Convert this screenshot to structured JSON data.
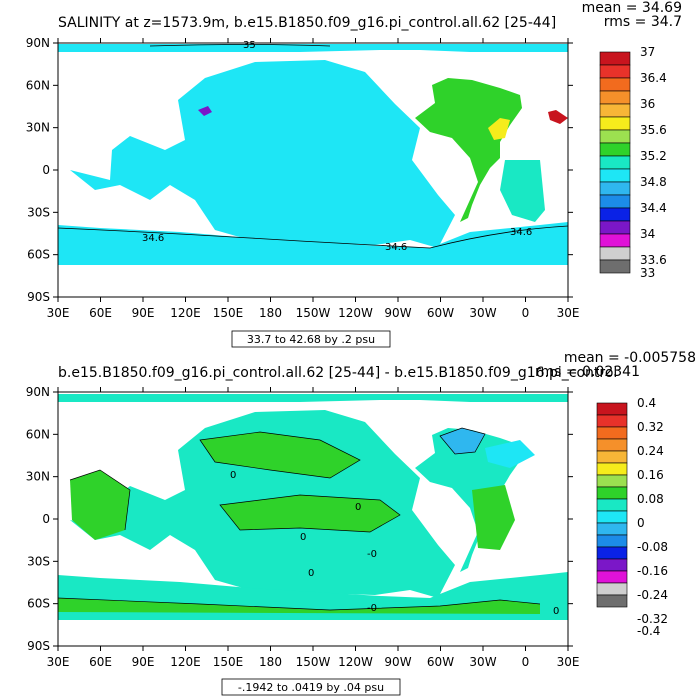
{
  "chart_data": [
    {
      "type": "map",
      "title": "SALINITY at z=1573.9m, b.e15.B1850.f09_g16.pi_control.all.62 [25-44]",
      "stats": {
        "mean": "mean = 34.69",
        "rms": "rms = 34.7"
      },
      "x_ticks": [
        "30E",
        "60E",
        "90E",
        "120E",
        "150E",
        "180",
        "150W",
        "120W",
        "90W",
        "60W",
        "30W",
        "0",
        "30E"
      ],
      "y_ticks": [
        "90N",
        "60N",
        "30N",
        "0",
        "30S",
        "60S",
        "90S"
      ],
      "lon_range": [
        30,
        390
      ],
      "lat_range": [
        -90,
        90
      ],
      "range_label": "33.7 to 42.68 by .2 psu",
      "colorbar": {
        "labels": [
          "37",
          "36.4",
          "36",
          "35.6",
          "35.2",
          "34.8",
          "34.4",
          "34",
          "33.6",
          "33"
        ],
        "colors": [
          "#c8141e",
          "#e8322a",
          "#f26b1e",
          "#f5902a",
          "#f7b637",
          "#f6ec1c",
          "#9ce050",
          "#2fd22a",
          "#19e8c4",
          "#1ee6f5",
          "#2fb7ef",
          "#1c8ce8",
          "#0a22e6",
          "#7b17c8",
          "#e012d8",
          "#cfcfcf",
          "#6e6e6e"
        ],
        "label_rows": [
          0,
          2,
          4,
          6,
          8,
          10,
          12,
          14,
          16,
          17
        ]
      },
      "contour_labels": [
        "35",
        "34.6",
        "34.6",
        "34.6"
      ],
      "regions": [
        {
          "name": "pacific-indian",
          "level": "34.6-34.8",
          "color": "#1ee6f5"
        },
        {
          "name": "atlantic",
          "level": "35.0-35.2",
          "color": "#2fd22a"
        },
        {
          "name": "southern-ocean",
          "level": "34.4-34.6",
          "color": "#19e8c4"
        },
        {
          "name": "mediterranean-outflow",
          "level": "35.6-35.8",
          "color": "#f6ec1c"
        },
        {
          "name": "mediterranean",
          "level": "36.4-37",
          "color": "#c8141e"
        }
      ]
    },
    {
      "type": "map",
      "title": "b.e15.B1850.f09_g16.pi_control.all.62 [25-44] - b.e15.B1850.f09_g16.pi_control",
      "stats": {
        "mean": "mean = -0.005758",
        "rms": "rms = 0.02341"
      },
      "x_ticks": [
        "30E",
        "60E",
        "90E",
        "120E",
        "150E",
        "180",
        "150W",
        "120W",
        "90W",
        "60W",
        "30W",
        "0",
        "30E"
      ],
      "y_ticks": [
        "90N",
        "60N",
        "30N",
        "0",
        "30S",
        "60S",
        "90S"
      ],
      "lon_range": [
        30,
        390
      ],
      "lat_range": [
        -90,
        90
      ],
      "range_label": "-.1942 to .0419 by .04 psu",
      "colorbar": {
        "labels": [
          "0.4",
          "0.32",
          "0.24",
          "0.16",
          "0.08",
          "0",
          "-0.08",
          "-0.16",
          "-0.24",
          "-0.32",
          "-0.4"
        ],
        "colors": [
          "#c8141e",
          "#e8322a",
          "#f26b1e",
          "#f5902a",
          "#f7b637",
          "#f6ec1c",
          "#9ce050",
          "#2fd22a",
          "#19e8c4",
          "#1ee6f5",
          "#2fb7ef",
          "#1c8ce8",
          "#0a22e6",
          "#7b17c8",
          "#e012d8",
          "#cfcfcf",
          "#6e6e6e"
        ],
        "label_rows": [
          0,
          2,
          4,
          6,
          8,
          10,
          12,
          14,
          16,
          18,
          19
        ]
      },
      "contour_labels": [
        "0",
        "0",
        "0",
        "-0",
        "0",
        "-0",
        "0"
      ],
      "regions": [
        {
          "name": "background",
          "level": "-0.04-0",
          "color": "#19e8c4"
        },
        {
          "name": "positive-anomaly",
          "level": "0-0.04",
          "color": "#2fd22a"
        },
        {
          "name": "labrador-sea-negative",
          "level": "-0.16 to -0.08",
          "color": "#2fb7ef"
        },
        {
          "name": "nordic-negative",
          "level": "-0.08 to -0.04",
          "color": "#1ee6f5"
        }
      ]
    }
  ]
}
